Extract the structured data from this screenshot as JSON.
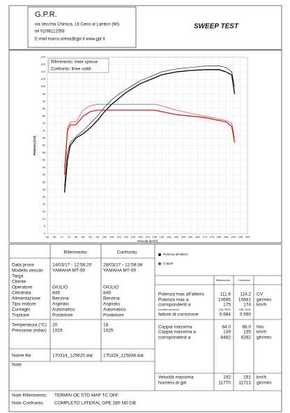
{
  "header": {
    "company": "G.P.R.",
    "address": "via Vecchia Chimica, 18 Cerro al Lambro (MI)",
    "phone": "tel 02/98112058",
    "contact": "E-mail marco.arena@gpr.it  www.gpr.it",
    "title": "SWEEP TEST"
  },
  "chart_data": {
    "type": "line",
    "y_label": "Potenza (CV)",
    "x_label": "Velocità (km/h)",
    "legend_box": [
      "Riferimento: linee spesse",
      "Confronto: linee sottili"
    ],
    "xlim": [
      60,
      200
    ],
    "ylim": [
      0,
      120
    ],
    "xticks": [
      60,
      65,
      70,
      75,
      80,
      85,
      90,
      95,
      100,
      105,
      110,
      115,
      120,
      125,
      130,
      135,
      140,
      145,
      150,
      155,
      160,
      165,
      170,
      175,
      180,
      185,
      190,
      195,
      200
    ],
    "yticks": [
      0,
      5,
      10,
      15,
      20,
      25,
      30,
      35,
      40,
      45,
      50,
      55,
      60,
      65,
      70,
      75,
      80,
      85,
      90,
      95,
      100,
      105,
      110,
      115,
      120
    ],
    "grid": true,
    "x": [
      72,
      74,
      76,
      80,
      85,
      90,
      95,
      100,
      105,
      110,
      115,
      120,
      125,
      130,
      135,
      140,
      150,
      160,
      170,
      180,
      185,
      189,
      191
    ],
    "series": [
      {
        "color": "#000000",
        "width": 1.3,
        "values": [
          28,
          50,
          60,
          65,
          68,
          72,
          77,
          83,
          88,
          92,
          96,
          99,
          102,
          104,
          106,
          108,
          110,
          111,
          111.5,
          111.6,
          110,
          108,
          95
        ]
      },
      {
        "color": "#000000",
        "width": 0.6,
        "values": [
          32,
          55,
          62,
          66,
          70,
          75,
          80,
          86,
          91,
          95,
          98,
          101,
          104,
          106,
          108,
          110,
          112,
          113,
          114,
          114.2,
          113,
          110,
          100
        ]
      },
      {
        "color": "#d62020",
        "width": 1.3,
        "values": [
          40,
          70,
          74,
          74,
          80,
          83,
          84,
          84,
          84,
          84,
          84,
          84,
          84,
          84,
          84,
          83,
          81,
          80,
          79,
          77,
          76,
          73,
          62
        ]
      },
      {
        "color": "#d62020",
        "width": 0.6,
        "values": [
          45,
          72,
          76,
          76,
          84,
          87,
          88,
          88,
          88,
          88,
          88,
          88,
          88,
          88,
          88,
          87,
          84,
          82,
          80,
          78,
          77,
          75,
          65
        ]
      }
    ],
    "legend": [
      {
        "label": "Potenza all'albero",
        "color": "#000000"
      },
      {
        "label": "Coppia",
        "color": "#d62020"
      }
    ]
  },
  "info": {
    "headers": [
      "Riferimento",
      "Confronto"
    ],
    "rows": [
      {
        "label": "Data prova",
        "values": [
          "14/03/17 - 12:56:20",
          "28/03/17 - 12:58:38"
        ]
      },
      {
        "label": "Modello veicolo",
        "values": [
          "YAMAHA MT-09",
          "YAMAHA MT-09"
        ]
      },
      {
        "label": "Targa",
        "values": [
          null,
          null
        ]
      },
      {
        "label": "Cliente",
        "values": [
          null,
          null
        ]
      },
      {
        "label": "Operatore",
        "values": [
          "GIULIO",
          "GIULIO"
        ]
      },
      {
        "label": "Cilindrata",
        "values": [
          "849",
          "849"
        ]
      },
      {
        "label": "Alimentazione",
        "values": [
          "Benzina",
          "Benzina"
        ]
      },
      {
        "label": "Tipo motore",
        "values": [
          "Aspirato",
          "Aspirato"
        ]
      },
      {
        "label": "Contagiri",
        "values": [
          "Automatico",
          "Automatico"
        ]
      },
      {
        "label": "Trazione",
        "values": [
          "Posteriore",
          "Posteriore"
        ]
      },
      {
        "label": "Temperatura (°C)",
        "values": [
          "20",
          "18"
        ]
      },
      {
        "label": "Pressione (mbar)",
        "values": [
          "1029",
          "1025"
        ]
      },
      {
        "label": "Nome file",
        "values": [
          "170314_125620.dat",
          "170328_125838.dat"
        ]
      },
      {
        "label": "Note",
        "values": [
          null,
          null
        ]
      }
    ]
  },
  "summary": {
    "headers": [
      "Riferimento",
      "Confronto"
    ],
    "rows": [
      {
        "label": "Potenza max all'albero",
        "values": [
          "111.6",
          "114.2"
        ],
        "unit": "CV"
      },
      {
        "label": "Potenza max a",
        "values": [
          "10685",
          "10681"
        ],
        "unit": "giri/min"
      },
      {
        "label": "corrispondenti a",
        "values": [
          "175",
          "174"
        ],
        "unit": "km/h"
      },
      {
        "label": "corretta secondo",
        "values": [
          "DIN 70020",
          "DIN 70020"
        ],
        "unit": null
      },
      {
        "label": "fattore di correzione",
        "values": [
          "0.984",
          "0.990"
        ],
        "unit": null
      },
      {
        "label": "Coppia massima",
        "values": [
          "84.0",
          "88.0"
        ],
        "unit": "Nm"
      },
      {
        "label": "Coppia massima a",
        "values": [
          "139",
          "135"
        ],
        "unit": "km/h"
      },
      {
        "label": "corrispondenti a",
        "values": [
          "8482",
          "8282"
        ],
        "unit": "giri/min"
      },
      {
        "label": "Velocità massima",
        "values": [
          "192",
          "191"
        ],
        "unit": "km/h"
      },
      {
        "label": "Numero di giri",
        "values": [
          "11770",
          "11721"
        ],
        "unit": "giri/min"
      }
    ]
  },
  "notes": [
    {
      "label": "Note Riferimento:",
      "value": "TERMIN OE STD MAP TC OFF"
    },
    {
      "label": "Note Confronto:",
      "value": "COMPLETO LATERAL GPE 280 NO DB"
    }
  ]
}
